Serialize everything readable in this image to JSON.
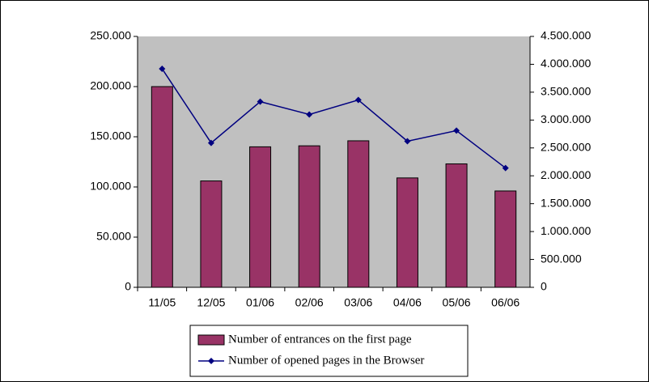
{
  "chart_data": {
    "type": "bar",
    "categories": [
      "11/05",
      "12/05",
      "01/06",
      "02/06",
      "03/06",
      "04/06",
      "05/06",
      "06/06"
    ],
    "series": [
      {
        "name": "Number of entrances on the first page",
        "color": "#993366",
        "values": [
          200000,
          106000,
          140000,
          141000,
          146000,
          109000,
          123000,
          96000
        ]
      },
      {
        "name": "Number of opened pages in the Browser",
        "color": "#000080",
        "axis": "y2",
        "values": [
          3920000,
          2590000,
          3330000,
          3100000,
          3360000,
          2620000,
          2810000,
          2140000
        ]
      }
    ],
    "ylim": [
      0,
      250000
    ],
    "yticks": [
      0,
      {
        "value": 50000,
        "label": "50.000"
      },
      {
        "value": 100000,
        "label": "100.000"
      },
      {
        "value": 150000,
        "label": "150.000"
      },
      {
        "value": 200000,
        "label": "200.000"
      },
      {
        "value": 250000,
        "label": "250.000"
      }
    ],
    "y2lim": [
      0,
      4500000
    ],
    "y2ticks": [
      0,
      {
        "value": 500000,
        "label": "500.000"
      },
      {
        "value": 1000000,
        "label": "1.000.000"
      },
      {
        "value": 1500000,
        "label": "1.500.000"
      },
      {
        "value": 2000000,
        "label": "2.000.000"
      },
      {
        "value": 2500000,
        "label": "2.500.000"
      },
      {
        "value": 3000000,
        "label": "3.000.000"
      },
      {
        "value": 3500000,
        "label": "3.500.000"
      },
      {
        "value": 4000000,
        "label": "4.000.000"
      },
      {
        "value": 4500000,
        "label": "4.500.000"
      }
    ],
    "plot_background": "#c0c0c0",
    "legend": "bottom"
  }
}
